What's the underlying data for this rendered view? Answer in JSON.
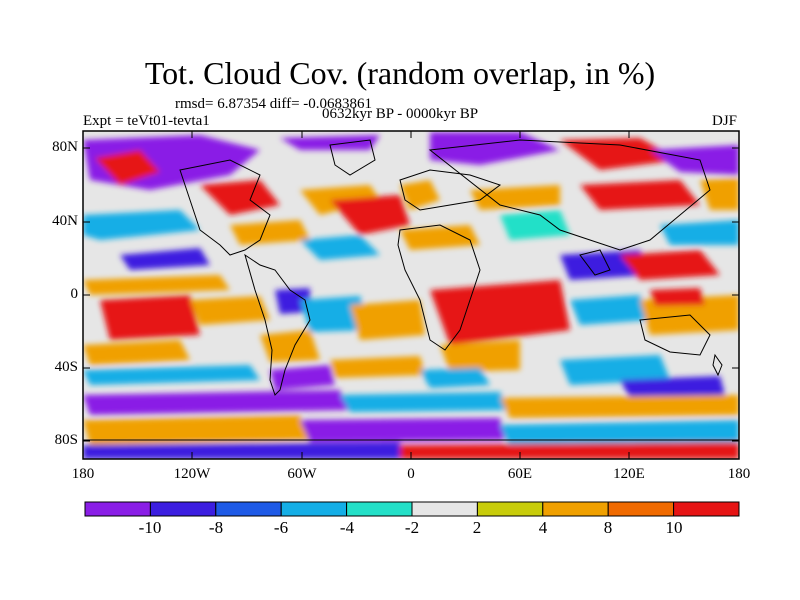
{
  "plot": {
    "title": "Tot. Cloud Cov. (random overlap, in %)",
    "stats_line": "rmsd= 6.87354 diff= -0.0683861",
    "period_line": "0632kyr BP - 0000kyr BP",
    "experiment": "Expt = teVt01-tevta1",
    "season": "DJF"
  },
  "axes": {
    "lat_labels": [
      "80N",
      "40N",
      "0",
      "40S",
      "80S"
    ],
    "lon_labels": [
      "180",
      "120W",
      "60W",
      "0",
      "60E",
      "120E",
      "180"
    ]
  },
  "colorbar": {
    "labels": [
      "-10",
      "-8",
      "-6",
      "-4",
      "-2",
      "2",
      "4",
      "8",
      "10"
    ],
    "colors": [
      "#8a1ee6",
      "#3c1ee0",
      "#1e5ae6",
      "#14aee6",
      "#24e0c8",
      "#e6e6e6",
      "#c8cc0a",
      "#f0a000",
      "#f06a00",
      "#e61414"
    ]
  }
}
